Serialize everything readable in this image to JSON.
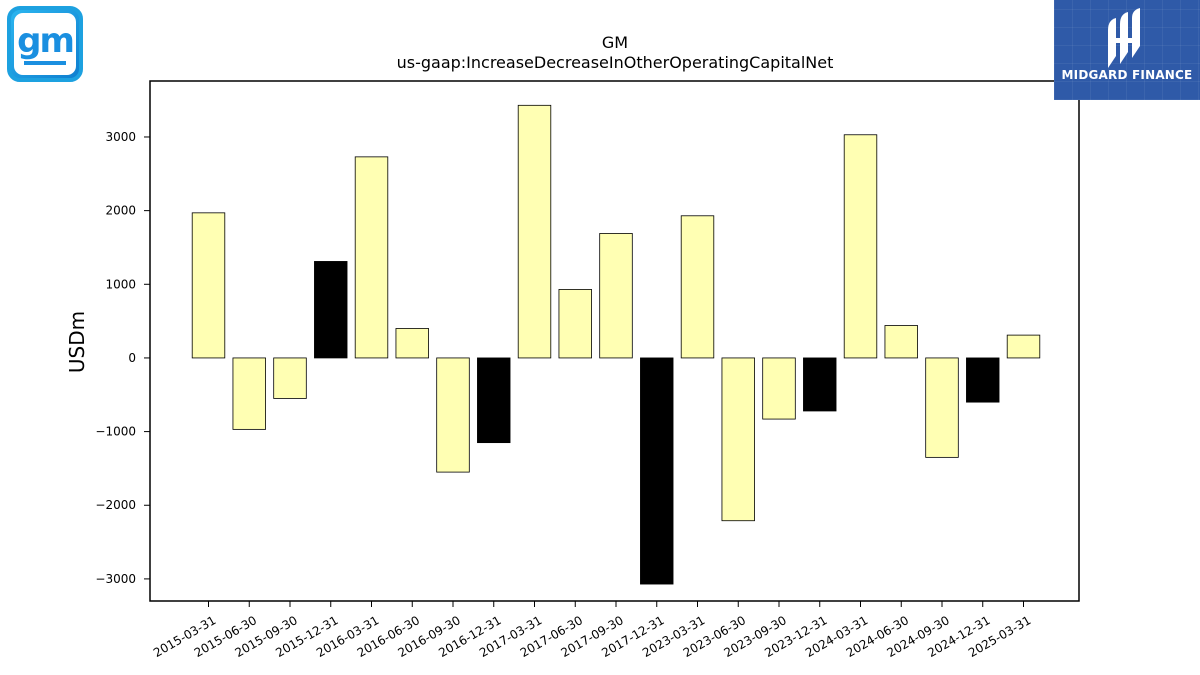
{
  "brands": {
    "left_logo": {
      "icon": "gm-logo-icon",
      "text": "gm",
      "color": "#1a8fe0"
    },
    "right_logo": {
      "icon": "midgard-logo-icon",
      "text": "MIDGARD FINANCE",
      "color": "#2f5aa8"
    }
  },
  "chart_data": {
    "type": "bar",
    "title": "GM",
    "subtitle": "us-gaap:IncreaseDecreaseInOtherOperatingCapitalNet",
    "xlabel": "",
    "ylabel": "USDm",
    "categories": [
      "2015-03-31",
      "2015-06-30",
      "2015-09-30",
      "2015-12-31",
      "2016-03-31",
      "2016-06-30",
      "2016-09-30",
      "2016-12-31",
      "2017-03-31",
      "2017-06-30",
      "2017-09-30",
      "2017-12-31",
      "2023-03-31",
      "2023-06-30",
      "2023-09-30",
      "2023-12-31",
      "2024-03-31",
      "2024-06-30",
      "2024-09-30",
      "2024-12-31",
      "2025-03-31"
    ],
    "values": [
      1970,
      -970,
      -550,
      1310,
      2730,
      400,
      -1550,
      -1150,
      3430,
      930,
      1690,
      -3070,
      1930,
      -2210,
      -830,
      -720,
      3030,
      440,
      -1350,
      -600,
      310
    ],
    "quarter_end_q4": [
      false,
      false,
      false,
      true,
      false,
      false,
      false,
      true,
      false,
      false,
      false,
      true,
      false,
      false,
      false,
      true,
      false,
      false,
      false,
      true,
      false
    ],
    "yticks": [
      -3000,
      -2000,
      -1000,
      0,
      1000,
      2000,
      3000
    ],
    "ytick_labels": [
      "−3000",
      "−2000",
      "−1000",
      "0",
      "1000",
      "2000",
      "3000"
    ],
    "ylim": [
      -3300,
      3760
    ],
    "colors": {
      "default_bar": "#ffffb3",
      "q4_bar": "#000000",
      "bar_edge": "#000000"
    },
    "grid": false,
    "legend": "none"
  }
}
